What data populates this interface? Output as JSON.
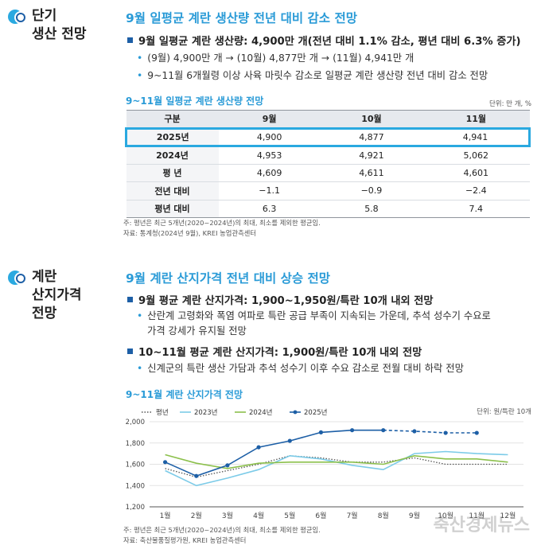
{
  "section1": {
    "title_line1": "단기",
    "title_line2": "생산 전망",
    "heading": "9월 일평균 계란 생산량 전년 대비 감소 전망",
    "main_bullet": "9월 일평균 계란 생산량: 4,900만 개(전년 대비 1.1% 감소, 평년 대비 6.3% 증가)",
    "sub_bullets": [
      "(9월) 4,900만 개 → (10월) 4,877만 개 → (11월) 4,941만 개",
      "9~11월 6개월령 이상 사육 마릿수 감소로 일평균 계란 생산량 전년 대비 감소 전망"
    ],
    "table_title": "9~11월 일평균 계란 생산량 전망",
    "table_unit": "단위: 만 개, %",
    "table_headers": [
      "구분",
      "9월",
      "10월",
      "11월"
    ],
    "table_rows": [
      {
        "label": "2025년",
        "values": [
          "4,900",
          "4,877",
          "4,941"
        ]
      },
      {
        "label": "2024년",
        "values": [
          "4,953",
          "4,921",
          "5,062"
        ]
      },
      {
        "label": "평  년",
        "values": [
          "4,609",
          "4,611",
          "4,601"
        ]
      },
      {
        "label": "전년 대비",
        "values": [
          "−1.1",
          "−0.9",
          "−2.4"
        ]
      },
      {
        "label": "평년 대비",
        "values": [
          "6.3",
          "5.8",
          "7.4"
        ]
      }
    ],
    "notes": [
      "주: 평년은 최근 5개년(2020~2024년)의 최대, 최소를 제외한 평균임.",
      "자료: 통계청(2024년 9월), KREI 농업관측센터"
    ]
  },
  "section2": {
    "title_line1": "계란",
    "title_line2": "산지가격",
    "title_line3": "전망",
    "heading": "9월 계란 산지가격 전년 대비 상승 전망",
    "bullet1": "9월 평균 계란 산지가격: 1,900~1,950원/특란 10개 내외 전망",
    "sub1_line1": "산란계 고령화와 폭염 여파로 특란 공급 부족이 지속되는 가운데, 추석 성수기 수요로",
    "sub1_line2": "가격 강세가 유지될 전망",
    "bullet2": "10~11월 평균 계란 산지가격: 1,900원/특란 10개 내외 전망",
    "sub2": "신계군의 특란 생산 가담과 추석 성수기 이후 수요 감소로 전월 대비 하락 전망",
    "chart_title": "9~11월 계란 산지가격 전망",
    "chart_unit": "단위: 원/특란 10개",
    "notes": [
      "주: 평년은 최근 5개년(2020~2024년)의 최대, 최소를 제외한 평균임.",
      "자료: 축산물품질평가원, KREI 농업관측센터"
    ]
  },
  "watermark": "축산경제뉴스",
  "colors": {
    "accent": "#2a9bd7",
    "navy": "#1d5fa6",
    "series_2023": "#7ccbe8",
    "series_2024": "#8cc04c",
    "series_2025": "#1d5fa6",
    "series_avg": "#555555"
  },
  "chart_data": {
    "type": "line",
    "categories": [
      "1월",
      "2월",
      "3월",
      "4월",
      "5월",
      "6월",
      "7월",
      "8월",
      "9월",
      "10월",
      "11월",
      "12월"
    ],
    "ylim": [
      1200,
      2000
    ],
    "yticks": [
      1200,
      1400,
      1600,
      1800,
      2000
    ],
    "legend_position": "top-left",
    "series": [
      {
        "name": "평년",
        "style": "dotted",
        "color": "#555555",
        "values": [
          1560,
          1480,
          1540,
          1600,
          1680,
          1660,
          1620,
          1620,
          1660,
          1600,
          1600,
          1600
        ]
      },
      {
        "name": "2023년",
        "style": "solid",
        "color": "#7ccbe8",
        "values": [
          1540,
          1400,
          1470,
          1550,
          1680,
          1650,
          1590,
          1550,
          1700,
          1720,
          1700,
          1690
        ]
      },
      {
        "name": "2024년",
        "style": "solid",
        "color": "#8cc04c",
        "values": [
          1690,
          1610,
          1560,
          1610,
          1620,
          1620,
          1620,
          1600,
          1680,
          1650,
          1650,
          1620
        ]
      },
      {
        "name": "2025년",
        "style": "solid-markers",
        "color": "#1d5fa6",
        "values": [
          1620,
          1490,
          1590,
          1760,
          1820,
          1900,
          1920,
          1920,
          null,
          null,
          null,
          null
        ],
        "forecast": [
          null,
          null,
          null,
          null,
          null,
          null,
          null,
          1920,
          1910,
          1895,
          1895,
          null
        ]
      }
    ]
  }
}
